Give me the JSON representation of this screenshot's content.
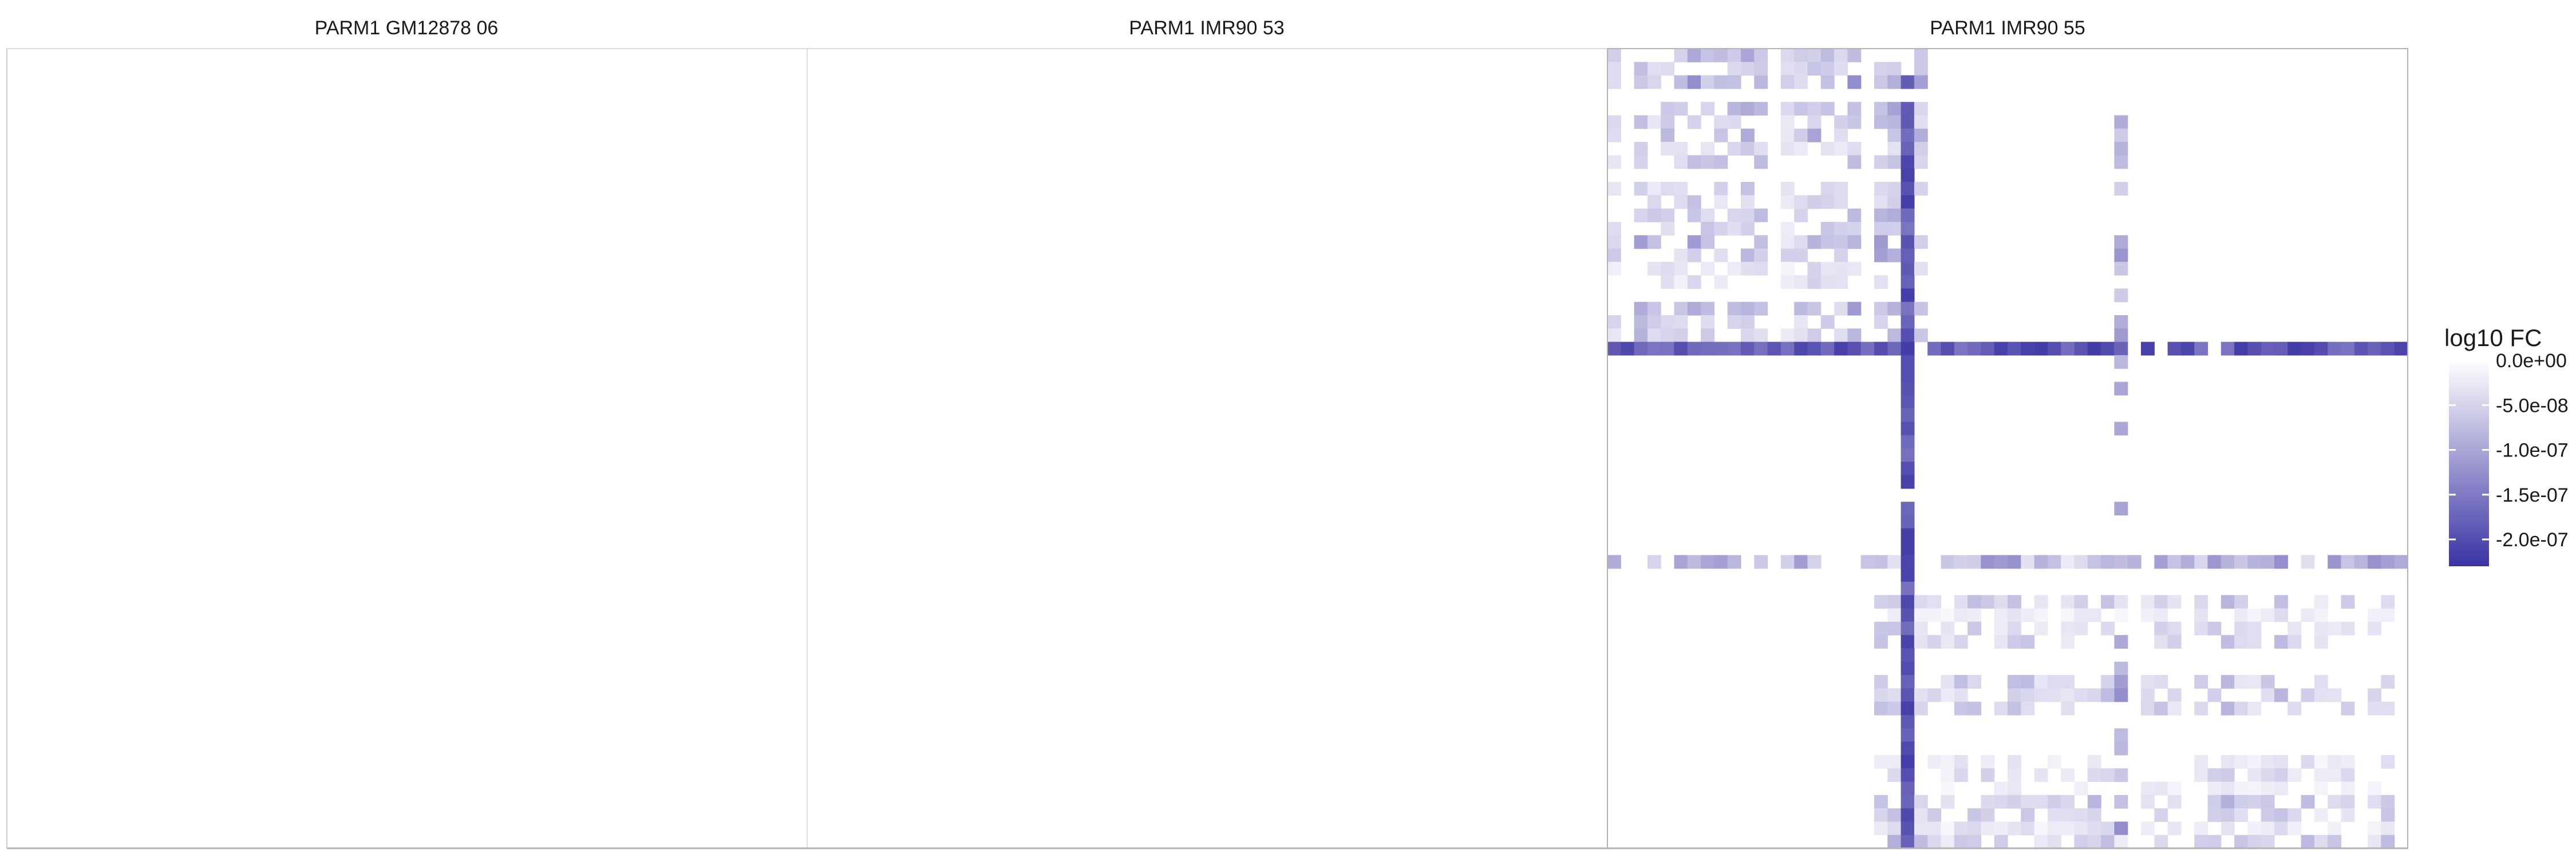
{
  "chart_data": {
    "type": "heatmap",
    "colors": {
      "low": "#3b33a3",
      "high": "#ffffff",
      "panel_border": "#b3b3b3",
      "tick": "#333333"
    },
    "legend": {
      "title": "log10 FC",
      "placement": "right",
      "range": [
        -2.3e-07,
        0
      ],
      "tick_values": [
        0,
        -5e-08,
        -1e-07,
        -1.5e-07,
        -2e-07
      ],
      "tick_labels": [
        "0.0e+00",
        "-5.0e-08",
        "-1.0e-07",
        "-1.5e-07",
        "-2.0e-07"
      ]
    },
    "panels": [
      {
        "title": "PARM1 GM12878 06",
        "grid_size": 60,
        "empty": true
      },
      {
        "title": "PARM1 IMR90 53",
        "grid_size": 60,
        "empty": true
      },
      {
        "title": "PARM1 IMR90 55",
        "grid_size": 60,
        "empty": false,
        "blocks": [
          {
            "rows": [
              0,
              23
            ],
            "cols": [
              0,
              24
            ],
            "min_value": -1.3e-07,
            "density": 0.65
          },
          {
            "rows": [
              38,
              60
            ],
            "cols": [
              20,
              60
            ],
            "min_value": -9e-08,
            "density": 0.6
          }
        ],
        "hotspot_index": 22,
        "hotspot_value": -2.2e-07,
        "secondary_index": 38,
        "secondary_value": -1.6e-07
      }
    ]
  }
}
